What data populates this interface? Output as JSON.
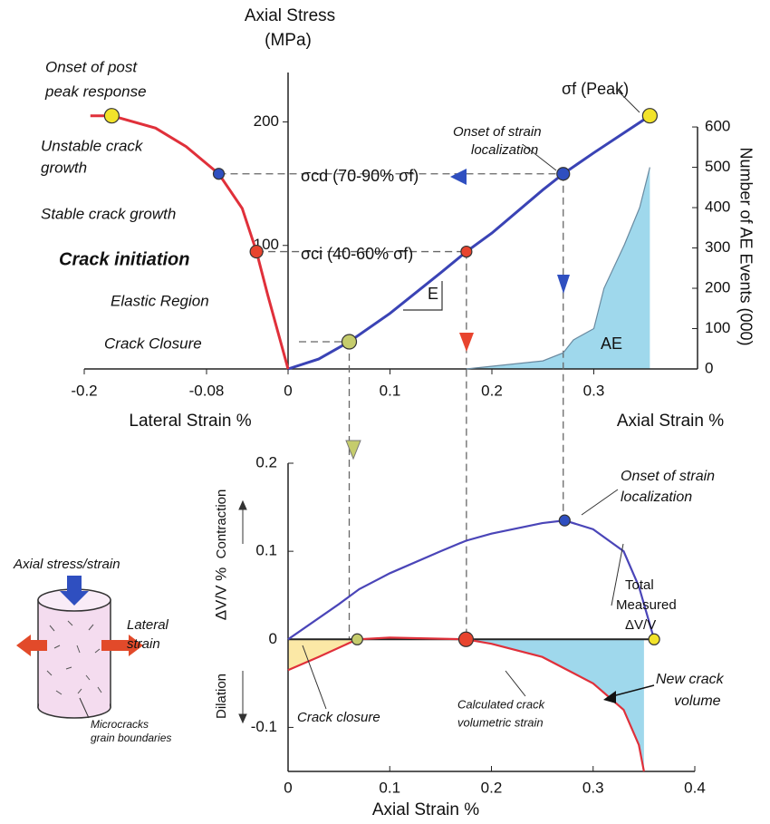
{
  "chart_data": [
    {
      "type": "line",
      "y_label": [
        "Axial Stress",
        "(MPa)"
      ],
      "y2_label": "Number of AE Events (000)",
      "x_labels": [
        "Lateral Strain %",
        "Axial Strain %"
      ],
      "xlim": [
        -0.2,
        0.36
      ],
      "ylim": [
        0,
        240
      ],
      "y2lim": [
        0,
        735
      ],
      "xticks": [
        -0.2,
        -0.08,
        0,
        0.1,
        0.2,
        0.3
      ],
      "yticks": [
        100,
        200
      ],
      "y2ticks": [
        0,
        100,
        200,
        300,
        400,
        500,
        600
      ],
      "series": [
        {
          "color": "#3a43b5",
          "x": [
            0,
            0.03,
            0.06,
            0.1,
            0.15,
            0.175,
            0.2,
            0.25,
            0.27,
            0.3,
            0.355
          ],
          "values": [
            0,
            8,
            22,
            45,
            78,
            95,
            110,
            145,
            158,
            175,
            205
          ]
        },
        {
          "color": "#e0303a",
          "x": [
            -0.194,
            -0.173,
            -0.13,
            -0.1,
            -0.068,
            -0.045,
            -0.031,
            -0.02,
            -0.01,
            0
          ],
          "values": [
            205,
            205,
            195,
            180,
            158,
            130,
            95,
            60,
            30,
            0
          ]
        },
        {
          "name": "AE",
          "color": "#9fd8ec",
          "axis": "y2",
          "x": [
            0.175,
            0.25,
            0.27,
            0.28,
            0.3,
            0.31,
            0.33,
            0.345,
            0.355
          ],
          "values": [
            0,
            20,
            40,
            72,
            100,
            200,
            308,
            400,
            500
          ]
        }
      ],
      "annotations": [
        "Onset of post",
        "peak response",
        "Unstable crack",
        "growth",
        "Stable crack growth",
        "Crack initiation",
        "Elastic Region",
        "Crack Closure",
        "σf (Peak)",
        "Onset of strain",
        "localization",
        "σcd (70-90% σf)",
        "σci (40-60% σf)",
        "E"
      ]
    },
    {
      "type": "line",
      "x_label": "Axial Strain %",
      "y_label": "ΔV/V %",
      "y_arrows": [
        "Contraction",
        "Dilation"
      ],
      "xlim": [
        0,
        0.4
      ],
      "ylim": [
        -0.15,
        0.2
      ],
      "xticks": [
        0,
        0.1,
        0.2,
        0.3,
        0.4
      ],
      "yticks": [
        -0.1,
        0,
        0.1,
        0.2
      ],
      "series": [
        {
          "name": "Total Measured ΔV/V",
          "color": "#4a45b8",
          "x": [
            0,
            0.05,
            0.07,
            0.1,
            0.15,
            0.175,
            0.2,
            0.25,
            0.272,
            0.3,
            0.33,
            0.345,
            0.355,
            0.36
          ],
          "values": [
            0,
            0.04,
            0.057,
            0.075,
            0.1,
            0.112,
            0.12,
            0.132,
            0.135,
            0.125,
            0.1,
            0.06,
            0.02,
            0
          ]
        },
        {
          "name": "Calculated crack volumetric strain",
          "color": "#e0303a",
          "x": [
            0,
            0.03,
            0.068,
            0.1,
            0.175,
            0.2,
            0.25,
            0.3,
            0.33,
            0.345,
            0.35
          ],
          "values": [
            -0.035,
            -0.02,
            0,
            0.002,
            0,
            -0.005,
            -0.02,
            -0.05,
            -0.08,
            -0.12,
            -0.15
          ]
        }
      ],
      "annotations": [
        "Onset of strain",
        "localization",
        "Total",
        "Measured",
        "ΔV/V",
        "New crack",
        "volume",
        "Crack closure",
        "Calculated crack",
        "volumetric strain"
      ]
    }
  ],
  "inset": {
    "labels": [
      "Axial stress/strain",
      "Lateral",
      "strain",
      "Microcracks",
      "grain boundaries"
    ]
  }
}
